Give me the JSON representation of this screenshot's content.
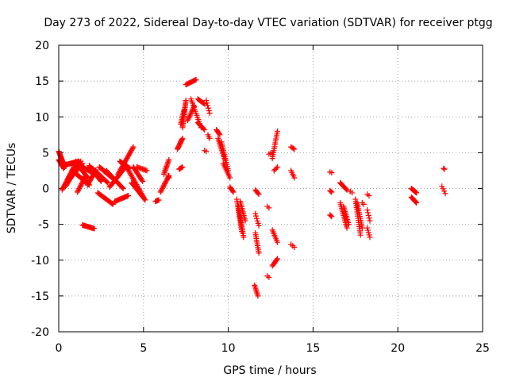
{
  "chart_data": {
    "type": "scatter",
    "title": "Day 273 of 2022, Sidereal Day-to-day VTEC variation (SDTVAR) for receiver ptgg",
    "xlabel": "GPS time / hours",
    "ylabel": "SDTVAR / TECUs",
    "xlim": [
      0,
      25
    ],
    "ylim": [
      -20,
      20
    ],
    "xticks": [
      0,
      5,
      10,
      15,
      20,
      25
    ],
    "yticks": [
      -20,
      -15,
      -10,
      -5,
      0,
      5,
      10,
      15,
      20
    ],
    "grid": true,
    "marker": "+",
    "color": "#ff0000",
    "segments": [
      {
        "x0": 0.0,
        "x1": 0.35,
        "y0": 5.2,
        "y1": 3.0,
        "n": 20
      },
      {
        "x0": 0.0,
        "x1": 0.3,
        "y0": 4.0,
        "y1": 2.8,
        "n": 10
      },
      {
        "x0": 0.2,
        "x1": 1.2,
        "y0": 3.2,
        "y1": 3.8,
        "n": 25
      },
      {
        "x0": 0.2,
        "x1": 1.0,
        "y0": -0.2,
        "y1": 3.5,
        "n": 25
      },
      {
        "x0": 0.4,
        "x1": 1.3,
        "y0": 0.3,
        "y1": 3.8,
        "n": 25
      },
      {
        "x0": 0.6,
        "x1": 1.4,
        "y0": 1.2,
        "y1": 3.5,
        "n": 20
      },
      {
        "x0": 0.8,
        "x1": 1.8,
        "y0": 2.5,
        "y1": 0.5,
        "n": 25
      },
      {
        "x0": 1.0,
        "x1": 1.7,
        "y0": 3.8,
        "y1": 1.5,
        "n": 20
      },
      {
        "x0": 1.1,
        "x1": 1.6,
        "y0": -0.5,
        "y1": 1.8,
        "n": 15
      },
      {
        "x0": 1.4,
        "x1": 2.0,
        "y0": 3.0,
        "y1": 2.2,
        "n": 15
      },
      {
        "x0": 1.4,
        "x1": 2.1,
        "y0": -5.1,
        "y1": -5.6,
        "n": 15
      },
      {
        "x0": 1.7,
        "x1": 2.2,
        "y0": 0.5,
        "y1": 2.6,
        "n": 15
      },
      {
        "x0": 1.8,
        "x1": 2.5,
        "y0": 3.2,
        "y1": 1.0,
        "n": 20
      },
      {
        "x0": 2.0,
        "x1": 2.9,
        "y0": 2.8,
        "y1": 0.8,
        "n": 20
      },
      {
        "x0": 2.3,
        "x1": 3.2,
        "y0": -0.6,
        "y1": -2.2,
        "n": 20
      },
      {
        "x0": 2.4,
        "x1": 3.4,
        "y0": 3.0,
        "y1": 1.0,
        "n": 25
      },
      {
        "x0": 2.8,
        "x1": 3.8,
        "y0": 2.5,
        "y1": 0.0,
        "n": 25
      },
      {
        "x0": 3.0,
        "x1": 4.0,
        "y0": 0.2,
        "y1": 3.2,
        "n": 25
      },
      {
        "x0": 3.3,
        "x1": 4.1,
        "y0": -1.8,
        "y1": -1.0,
        "n": 15
      },
      {
        "x0": 3.5,
        "x1": 4.4,
        "y0": 2.0,
        "y1": 5.8,
        "n": 25
      },
      {
        "x0": 3.6,
        "x1": 4.2,
        "y0": 3.8,
        "y1": 2.8,
        "n": 15
      },
      {
        "x0": 4.0,
        "x1": 5.0,
        "y0": 3.0,
        "y1": -1.2,
        "n": 25
      },
      {
        "x0": 4.4,
        "x1": 4.95,
        "y0": 3.0,
        "y1": 1.0,
        "n": 15
      },
      {
        "x0": 4.3,
        "x1": 5.1,
        "y0": 0.8,
        "y1": -1.6,
        "n": 20
      },
      {
        "x0": 4.6,
        "x1": 5.2,
        "y0": 3.0,
        "y1": 2.5,
        "n": 10
      },
      {
        "x0": 5.7,
        "x1": 5.9,
        "y0": -1.8,
        "y1": -1.6,
        "n": 5
      },
      {
        "x0": 6.0,
        "x1": 6.5,
        "y0": -0.5,
        "y1": 1.8,
        "n": 15
      },
      {
        "x0": 6.2,
        "x1": 6.5,
        "y0": 2.0,
        "y1": 4.0,
        "n": 12
      },
      {
        "x0": 6.45,
        "x1": 6.5,
        "y0": 1.8,
        "y1": 1.5,
        "n": 3
      },
      {
        "x0": 7.0,
        "x1": 7.3,
        "y0": 5.5,
        "y1": 7.0,
        "n": 12
      },
      {
        "x0": 7.1,
        "x1": 7.3,
        "y0": 2.7,
        "y1": 3.0,
        "n": 5
      },
      {
        "x0": 7.3,
        "x1": 7.5,
        "y0": 8.5,
        "y1": 12.3,
        "n": 20
      },
      {
        "x0": 7.2,
        "x1": 7.4,
        "y0": 9.0,
        "y1": 11.0,
        "n": 10
      },
      {
        "x0": 7.5,
        "x1": 8.1,
        "y0": 14.5,
        "y1": 15.2,
        "n": 12
      },
      {
        "x0": 7.6,
        "x1": 8.0,
        "y0": 9.5,
        "y1": 11.5,
        "n": 12
      },
      {
        "x0": 7.8,
        "x1": 8.4,
        "y0": 12.5,
        "y1": 8.5,
        "n": 15
      },
      {
        "x0": 8.2,
        "x1": 8.6,
        "y0": 12.5,
        "y1": 11.8,
        "n": 8
      },
      {
        "x0": 8.2,
        "x1": 8.6,
        "y0": 9.2,
        "y1": 8.2,
        "n": 8
      },
      {
        "x0": 8.7,
        "x1": 8.9,
        "y0": 12.3,
        "y1": 10.5,
        "n": 6
      },
      {
        "x0": 8.8,
        "x1": 8.9,
        "y0": 7.5,
        "y1": 7.0,
        "n": 3
      },
      {
        "x0": 8.6,
        "x1": 8.7,
        "y0": 5.3,
        "y1": 5.2,
        "n": 2
      },
      {
        "x0": 9.3,
        "x1": 9.5,
        "y0": 8.2,
        "y1": 7.5,
        "n": 6
      },
      {
        "x0": 9.4,
        "x1": 9.8,
        "y0": 7.0,
        "y1": 4.0,
        "n": 15
      },
      {
        "x0": 9.6,
        "x1": 10.0,
        "y0": 6.5,
        "y1": 2.5,
        "n": 15
      },
      {
        "x0": 9.7,
        "x1": 10.1,
        "y0": 3.5,
        "y1": 1.5,
        "n": 10
      },
      {
        "x0": 10.1,
        "x1": 10.3,
        "y0": 0.2,
        "y1": -0.5,
        "n": 6
      },
      {
        "x0": 10.5,
        "x1": 10.8,
        "y0": -1.5,
        "y1": -6.0,
        "n": 18
      },
      {
        "x0": 10.6,
        "x1": 10.9,
        "y0": -2.5,
        "y1": -6.8,
        "n": 18
      },
      {
        "x0": 10.7,
        "x1": 11.0,
        "y0": -1.8,
        "y1": -4.5,
        "n": 12
      },
      {
        "x0": 11.6,
        "x1": 11.8,
        "y0": -0.2,
        "y1": -0.8,
        "n": 5
      },
      {
        "x0": 11.6,
        "x1": 11.8,
        "y0": -3.5,
        "y1": -5.2,
        "n": 6
      },
      {
        "x0": 11.6,
        "x1": 11.8,
        "y0": -6.2,
        "y1": -9.0,
        "n": 12
      },
      {
        "x0": 11.55,
        "x1": 11.75,
        "y0": -13.5,
        "y1": -15.0,
        "n": 8
      },
      {
        "x0": 12.3,
        "x1": 12.4,
        "y0": -2.5,
        "y1": -2.7,
        "n": 2
      },
      {
        "x0": 12.3,
        "x1": 12.4,
        "y0": -12.2,
        "y1": -12.4,
        "n": 2
      },
      {
        "x0": 12.4,
        "x1": 12.6,
        "y0": 4.8,
        "y1": 5.0,
        "n": 3
      },
      {
        "x0": 12.6,
        "x1": 12.9,
        "y0": 4.2,
        "y1": 8.0,
        "n": 15
      },
      {
        "x0": 12.7,
        "x1": 12.9,
        "y0": 2.5,
        "y1": 3.0,
        "n": 4
      },
      {
        "x0": 12.6,
        "x1": 12.9,
        "y0": -5.8,
        "y1": -7.5,
        "n": 8
      },
      {
        "x0": 12.6,
        "x1": 12.9,
        "y0": -10.8,
        "y1": -9.8,
        "n": 8
      },
      {
        "x0": 13.7,
        "x1": 13.9,
        "y0": 5.8,
        "y1": 5.5,
        "n": 4
      },
      {
        "x0": 13.7,
        "x1": 13.9,
        "y0": 2.5,
        "y1": 1.5,
        "n": 5
      },
      {
        "x0": 13.7,
        "x1": 13.9,
        "y0": -7.8,
        "y1": -8.2,
        "n": 3
      },
      {
        "x0": 16.0,
        "x1": 16.1,
        "y0": 2.3,
        "y1": 2.2,
        "n": 2
      },
      {
        "x0": 16.0,
        "x1": 16.1,
        "y0": -0.3,
        "y1": -0.5,
        "n": 3
      },
      {
        "x0": 16.0,
        "x1": 16.1,
        "y0": -3.7,
        "y1": -3.9,
        "n": 3
      },
      {
        "x0": 16.6,
        "x1": 17.0,
        "y0": 0.8,
        "y1": -0.2,
        "n": 10
      },
      {
        "x0": 16.6,
        "x1": 17.0,
        "y0": -2.0,
        "y1": -5.5,
        "n": 15
      },
      {
        "x0": 16.8,
        "x1": 17.1,
        "y0": -2.5,
        "y1": -5.0,
        "n": 12
      },
      {
        "x0": 17.2,
        "x1": 17.3,
        "y0": -0.4,
        "y1": -0.6,
        "n": 2
      },
      {
        "x0": 17.5,
        "x1": 17.8,
        "y0": -1.5,
        "y1": -6.5,
        "n": 18
      },
      {
        "x0": 17.6,
        "x1": 17.9,
        "y0": -2.0,
        "y1": -5.5,
        "n": 14
      },
      {
        "x0": 17.9,
        "x1": 18.0,
        "y0": -2.0,
        "y1": -2.2,
        "n": 2
      },
      {
        "x0": 18.2,
        "x1": 18.3,
        "y0": -0.8,
        "y1": -1.0,
        "n": 2
      },
      {
        "x0": 18.2,
        "x1": 18.35,
        "y0": -3.0,
        "y1": -4.5,
        "n": 5
      },
      {
        "x0": 18.2,
        "x1": 18.35,
        "y0": -5.5,
        "y1": -6.8,
        "n": 5
      },
      {
        "x0": 20.8,
        "x1": 21.1,
        "y0": 0.0,
        "y1": -0.6,
        "n": 10
      },
      {
        "x0": 20.8,
        "x1": 21.1,
        "y0": -1.2,
        "y1": -2.0,
        "n": 10
      },
      {
        "x0": 22.7,
        "x1": 22.75,
        "y0": 2.8,
        "y1": 2.7,
        "n": 2
      },
      {
        "x0": 22.6,
        "x1": 22.8,
        "y0": 0.3,
        "y1": -0.7,
        "n": 4
      }
    ]
  }
}
